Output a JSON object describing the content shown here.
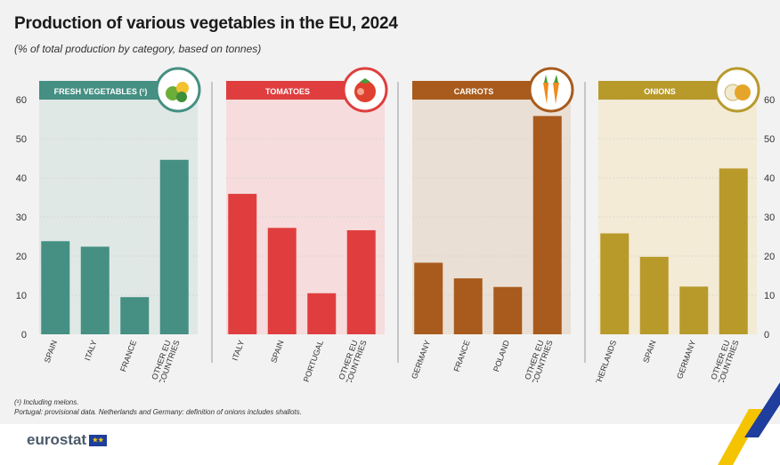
{
  "header": {
    "title": "Production of various vegetables in the EU, 2024",
    "subtitle": "(% of total production by category, based on tonnes)"
  },
  "chart_data": [
    {
      "type": "bar",
      "title": "FRESH VEGETABLES (¹)",
      "icon": "vegetables-icon",
      "color": "#458f83",
      "panel_color": "#dfe8e5",
      "categories": [
        "SPAIN",
        "ITALY",
        "FRANCE",
        "OTHER EU COUNTRIES"
      ],
      "values": [
        23.8,
        22.4,
        9.5,
        44.6
      ],
      "ylim": [
        0,
        60
      ],
      "yticks": [
        0,
        10,
        20,
        30,
        40,
        50,
        60
      ]
    },
    {
      "type": "bar",
      "title": "TOMATOES",
      "icon": "tomato-icon",
      "color": "#e03e3e",
      "panel_color": "#f6dcdc",
      "categories": [
        "ITALY",
        "SPAIN",
        "PORTUGAL",
        "OTHER EU COUNTRIES"
      ],
      "values": [
        35.9,
        27.2,
        10.5,
        26.6
      ],
      "ylim": [
        0,
        60
      ],
      "yticks": [
        0,
        10,
        20,
        30,
        40,
        50,
        60
      ]
    },
    {
      "type": "bar",
      "title": "CARROTS",
      "icon": "carrot-icon",
      "color": "#a85b1c",
      "panel_color": "#eadfd4",
      "categories": [
        "GERMANY",
        "FRANCE",
        "POLAND",
        "OTHER EU COUNTRIES"
      ],
      "values": [
        18.3,
        14.3,
        12.1,
        55.8
      ],
      "ylim": [
        0,
        60
      ],
      "yticks": [
        0,
        10,
        20,
        30,
        40,
        50,
        60
      ]
    },
    {
      "type": "bar",
      "title": "ONIONS",
      "icon": "onion-icon",
      "color": "#b89a2b",
      "panel_color": "#f3ebd6",
      "categories": [
        "NETHERLANDS",
        "SPAIN",
        "GERMANY",
        "OTHER EU COUNTRIES"
      ],
      "values": [
        25.8,
        19.8,
        12.2,
        42.4
      ],
      "ylim": [
        0,
        60
      ],
      "yticks": [
        0,
        10,
        20,
        30,
        40,
        50,
        60
      ]
    }
  ],
  "footnotes": {
    "line1": "(¹) Including melons.",
    "line2": "Portugal: provisional data. Netherlands and Germany: definition of onions includes shallots."
  },
  "brand": {
    "logo_text": "eurostat",
    "flag_icon": "eu-flag-icon"
  }
}
